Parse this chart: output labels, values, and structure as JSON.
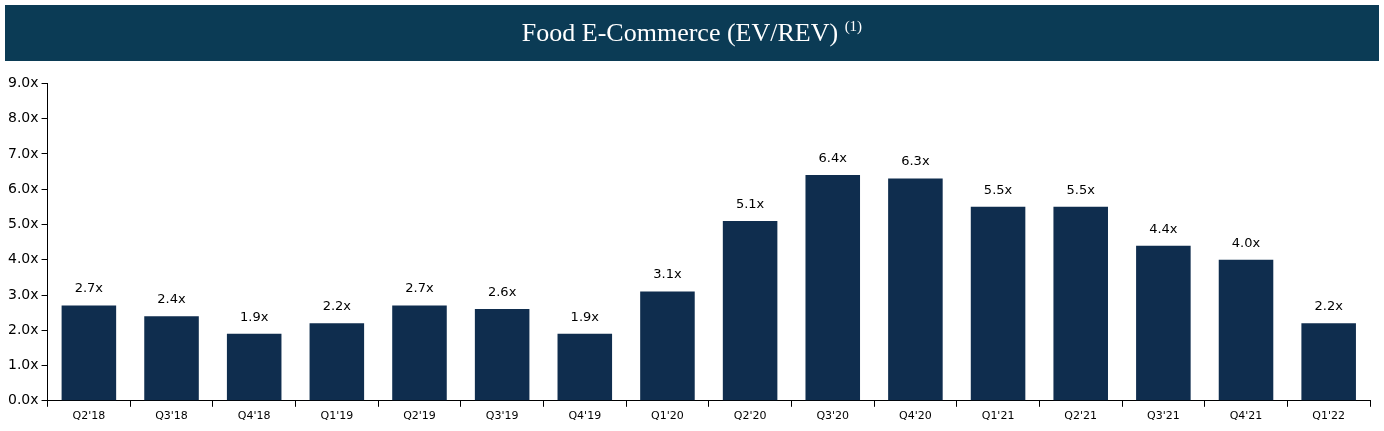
{
  "chart_data": {
    "type": "bar",
    "title": "Food E-Commerce (EV/REV) $^{(1)}$",
    "categories": [
      "Q2'18",
      "Q3'18",
      "Q4'18",
      "Q1'19",
      "Q2'19",
      "Q3'19",
      "Q4'19",
      "Q1'20",
      "Q2'20",
      "Q3'20",
      "Q4'20",
      "Q1'21",
      "Q2'21",
      "Q3'21",
      "Q4'21",
      "Q1'22"
    ],
    "values": [
      2.7,
      2.4,
      1.9,
      2.2,
      2.7,
      2.6,
      1.9,
      3.1,
      5.1,
      6.4,
      6.3,
      5.5,
      5.5,
      4.4,
      4.0,
      2.2
    ],
    "value_labels": [
      "2.7x",
      "2.4x",
      "1.9x",
      "2.2x",
      "2.7x",
      "2.6x",
      "1.9x",
      "3.1x",
      "5.1x",
      "6.4x",
      "6.3x",
      "5.5x",
      "5.5x",
      "4.4x",
      "4.0x",
      "2.2x"
    ],
    "color": "#0f2d4e",
    "ylim": [
      0,
      9
    ],
    "yticks": [
      {
        "value": 0,
        "label": "0.0x"
      },
      {
        "value": 1,
        "label": "1.0x"
      },
      {
        "value": 2,
        "label": "2.0x"
      },
      {
        "value": 3,
        "label": "3.0x"
      },
      {
        "value": 4,
        "label": "4.0x"
      },
      {
        "value": 5,
        "label": "5.0x"
      },
      {
        "value": 6,
        "label": "6.0x"
      },
      {
        "value": 7,
        "label": "7.0x"
      },
      {
        "value": 8,
        "label": "8.0x"
      },
      {
        "value": 9,
        "label": "9.0x"
      }
    ],
    "grid": false,
    "legend": false
  }
}
